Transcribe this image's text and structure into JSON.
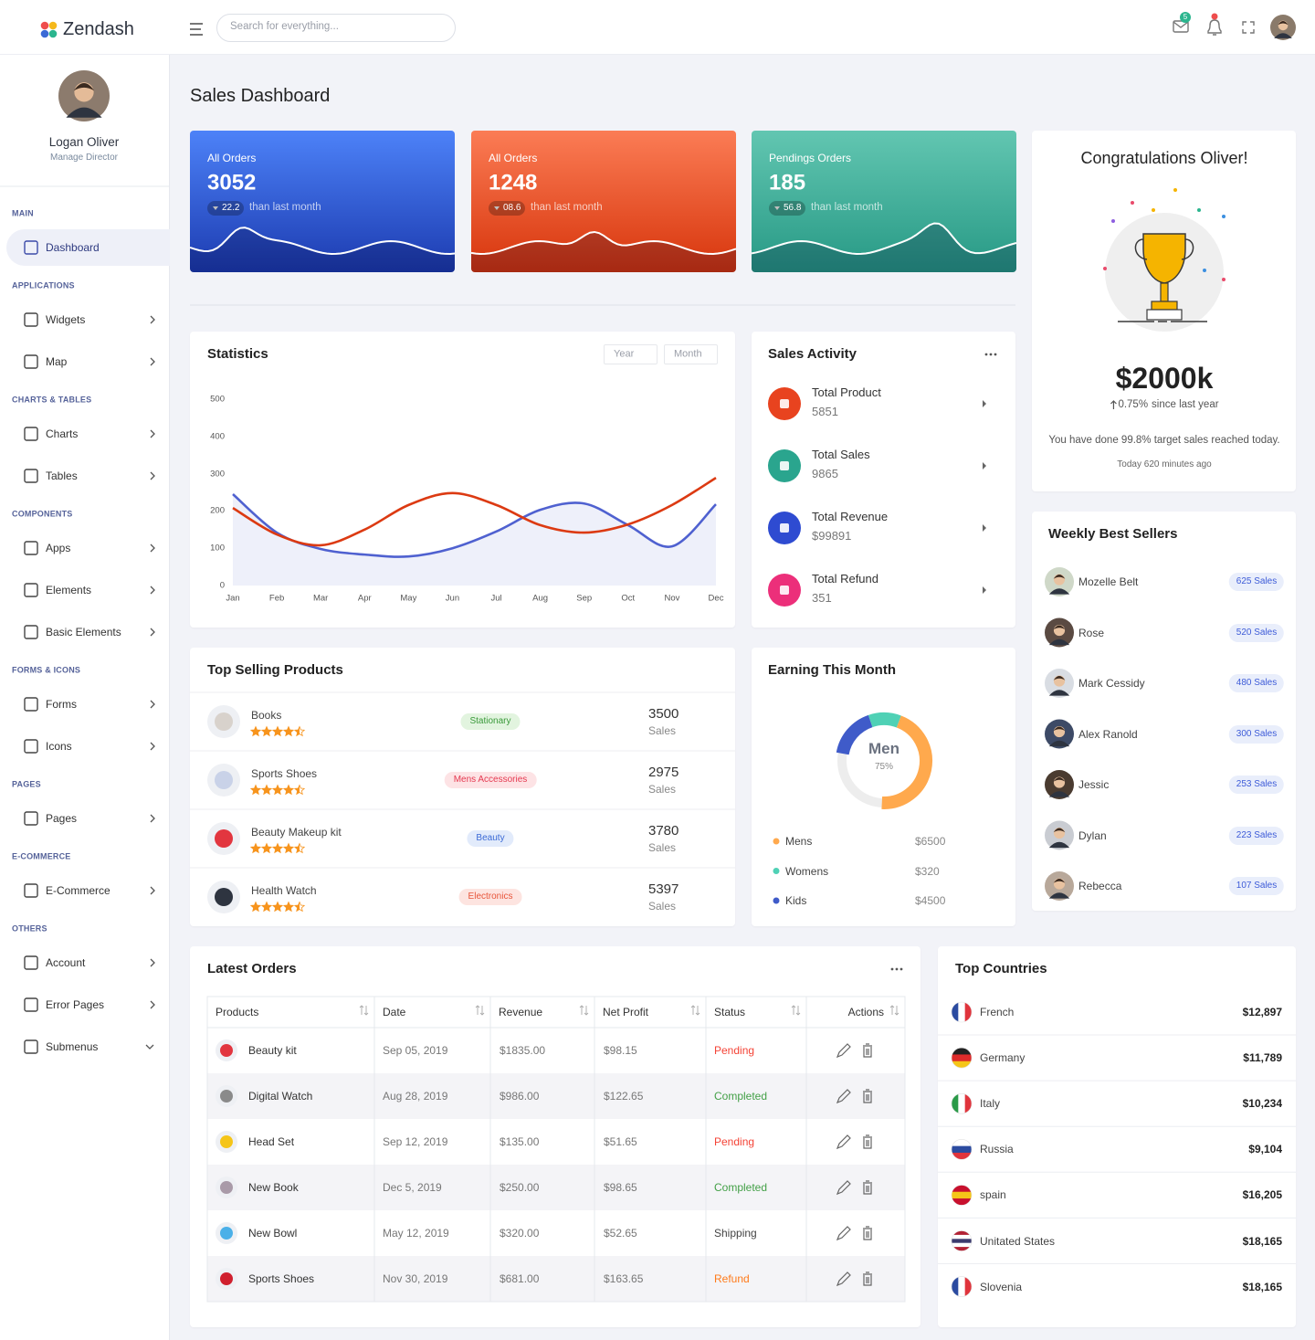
{
  "brand": "Zendash",
  "search_placeholder": "Search for everything...",
  "mail_badge": "5",
  "profile": {
    "name": "Logan Oliver",
    "role": "Manage Director"
  },
  "nav": [
    {
      "section": "MAIN",
      "items": [
        {
          "label": "Dashboard",
          "active": true
        }
      ]
    },
    {
      "section": "APPLICATIONS",
      "items": [
        {
          "label": "Widgets"
        },
        {
          "label": "Map"
        }
      ]
    },
    {
      "section": "CHARTS & TABLES",
      "items": [
        {
          "label": "Charts"
        },
        {
          "label": "Tables"
        }
      ]
    },
    {
      "section": "COMPONENTS",
      "items": [
        {
          "label": "Apps"
        },
        {
          "label": "Elements"
        },
        {
          "label": "Basic Elements"
        }
      ]
    },
    {
      "section": "FORMS & ICONS",
      "items": [
        {
          "label": "Forms"
        },
        {
          "label": "Icons"
        }
      ]
    },
    {
      "section": "PAGES",
      "items": [
        {
          "label": "Pages"
        }
      ]
    },
    {
      "section": "E-COMMERCE",
      "items": [
        {
          "label": "E-Commerce"
        }
      ]
    },
    {
      "section": "OTHERS",
      "items": [
        {
          "label": "Account"
        },
        {
          "label": "Error Pages"
        },
        {
          "label": "Submenus",
          "expanded": true
        }
      ]
    }
  ],
  "page_title": "Sales Dashboard",
  "stat_cards": [
    {
      "title": "All Orders",
      "value": 3052,
      "change": "22.2",
      "note": "than last month",
      "colors": [
        "#4d82f8",
        "#1c3bb0"
      ]
    },
    {
      "title": "All Orders",
      "value": 1248,
      "change": "08.6",
      "note": "than last month",
      "colors": [
        "#fb7c55",
        "#d7350c"
      ]
    },
    {
      "title": "Pendings Orders",
      "value": 185,
      "change": "56.8",
      "note": "than last month",
      "colors": [
        "#62c6b1",
        "#279985"
      ]
    }
  ],
  "congrats": {
    "title": "Congratulations Oliver!",
    "amount": "$2000k",
    "growth": "0.75%",
    "growth_note": "since last year",
    "text": "You have done 99.8% target sales reached today.",
    "time": "Today 620 minutes ago"
  },
  "statistics": {
    "title": "Statistics",
    "filters": [
      "Year",
      "Month"
    ],
    "chart": {
      "type": "line",
      "categories": [
        "Jan",
        "Feb",
        "Mar",
        "Apr",
        "May",
        "Jun",
        "Jul",
        "Aug",
        "Sep",
        "Oct",
        "Nov",
        "Dec"
      ],
      "series": [
        {
          "color": "#4f61d0",
          "area": "#eef0fa",
          "values": [
            245,
            142,
            98,
            83,
            78,
            100,
            145,
            203,
            220,
            162,
            105,
            218
          ]
        },
        {
          "color": "#dc3a12",
          "values": [
            208,
            137,
            108,
            150,
            216,
            248,
            216,
            162,
            142,
            164,
            216,
            289
          ]
        }
      ],
      "ylim": [
        0,
        500
      ],
      "yticks": [
        0,
        100,
        200,
        300,
        400,
        500
      ],
      "grid": false
    }
  },
  "sales_activity": {
    "title": "Sales Activity",
    "items": [
      {
        "label": "Total Product",
        "value": 5851,
        "color": "#e8431f"
      },
      {
        "label": "Total Sales",
        "value": 9865,
        "color": "#2aa58e"
      },
      {
        "label": "Total Revenue",
        "value": "$99891",
        "color": "#2e4bd1"
      },
      {
        "label": "Total Refund",
        "value": 351,
        "color": "#ec2f7a"
      }
    ]
  },
  "top_products": {
    "title": "Top Selling Products",
    "sales_unit": "Sales",
    "rows": [
      {
        "name": "Books",
        "rating": 4.5,
        "tag": "Stationary",
        "tag_colors": [
          "#e2f4df",
          "#3a9a3a"
        ],
        "sales": 3500
      },
      {
        "name": "Sports Shoes",
        "rating": 4.5,
        "tag": "Mens Accessories",
        "tag_colors": [
          "#fde3e5",
          "#e53950"
        ],
        "sales": 2975
      },
      {
        "name": "Beauty Makeup kit",
        "rating": 4.5,
        "tag": "Beauty",
        "tag_colors": [
          "#e2ebfb",
          "#3b6ad6"
        ],
        "sales": 3780
      },
      {
        "name": "Health Watch",
        "rating": 4.5,
        "tag": "Electronics",
        "tag_colors": [
          "#fde4e0",
          "#e8553a"
        ],
        "sales": 5397
      }
    ]
  },
  "earning": {
    "title": "Earning This Month",
    "center_label": "Men",
    "center_value": "75%",
    "items": [
      {
        "name": "Mens",
        "value": "$6500",
        "color": "#ffa94d",
        "share": 45
      },
      {
        "name": "Womens",
        "value": "$320",
        "color": "#4fd1b5",
        "share": 11
      },
      {
        "name": "Kids",
        "value": "$4500",
        "color": "#3f5bc9",
        "share": 17
      }
    ]
  },
  "best_sellers": {
    "title": "Weekly Best Sellers",
    "rows": [
      {
        "name": "Mozelle Belt",
        "sales": "625 Sales"
      },
      {
        "name": "Rose",
        "sales": "520 Sales"
      },
      {
        "name": "Mark Cessidy",
        "sales": "480 Sales"
      },
      {
        "name": "Alex Ranold",
        "sales": "300 Sales"
      },
      {
        "name": "Jessic",
        "sales": "253 Sales"
      },
      {
        "name": "Dylan",
        "sales": "223 Sales"
      },
      {
        "name": "Rebecca",
        "sales": "107 Sales"
      }
    ]
  },
  "orders": {
    "title": "Latest Orders",
    "columns": [
      "Products",
      "Date",
      "Revenue",
      "Net Profit",
      "Status",
      "Actions"
    ],
    "status_colors": {
      "Pending": "#f44336",
      "Completed": "#43a047",
      "Shipping": "#444444",
      "Refund": "#ff7a1a"
    },
    "rows": [
      {
        "product": "Beauty kit",
        "date": "Sep 05, 2019",
        "revenue": "$1835.00",
        "profit": "$98.15",
        "status": "Pending"
      },
      {
        "product": "Digital Watch",
        "date": "Aug 28, 2019",
        "revenue": "$986.00",
        "profit": "$122.65",
        "status": "Completed"
      },
      {
        "product": "Head Set",
        "date": "Sep 12, 2019",
        "revenue": "$135.00",
        "profit": "$51.65",
        "status": "Pending"
      },
      {
        "product": "New Book",
        "date": "Dec 5, 2019",
        "revenue": "$250.00",
        "profit": "$98.65",
        "status": "Completed"
      },
      {
        "product": "New Bowl",
        "date": "May 12, 2019",
        "revenue": "$320.00",
        "profit": "$52.65",
        "status": "Shipping"
      },
      {
        "product": "Sports Shoes",
        "date": "Nov 30, 2019",
        "revenue": "$681.00",
        "profit": "$163.65",
        "status": "Refund"
      }
    ]
  },
  "countries": {
    "title": "Top Countries",
    "rows": [
      {
        "name": "French",
        "amount": "$12,897",
        "flag": [
          "#2b4ba0",
          "#ffffff",
          "#e0343c"
        ],
        "flag_dir": "v"
      },
      {
        "name": "Germany",
        "amount": "$11,789",
        "flag": [
          "#222222",
          "#dd2b2b",
          "#f5c518"
        ],
        "flag_dir": "h"
      },
      {
        "name": "Italy",
        "amount": "$10,234",
        "flag": [
          "#2a9a48",
          "#ffffff",
          "#e0343c"
        ],
        "flag_dir": "v"
      },
      {
        "name": "Russia",
        "amount": "$9,104",
        "flag": [
          "#ffffff",
          "#2b4ba0",
          "#e0343c"
        ],
        "flag_dir": "h"
      },
      {
        "name": "spain",
        "amount": "$16,205",
        "flag": [
          "#c8102e",
          "#f5c518",
          "#c8102e"
        ],
        "flag_dir": "h"
      },
      {
        "name": "Unitated States",
        "amount": "$18,165",
        "flag": [
          "#b22234",
          "#ffffff",
          "#3c3b6e",
          "#ffffff",
          "#b22234"
        ],
        "flag_dir": "h"
      },
      {
        "name": "Slovenia",
        "amount": "$18,165",
        "flag": [
          "#2b4ba0",
          "#ffffff",
          "#e0343c"
        ],
        "flag_dir": "v"
      }
    ]
  }
}
